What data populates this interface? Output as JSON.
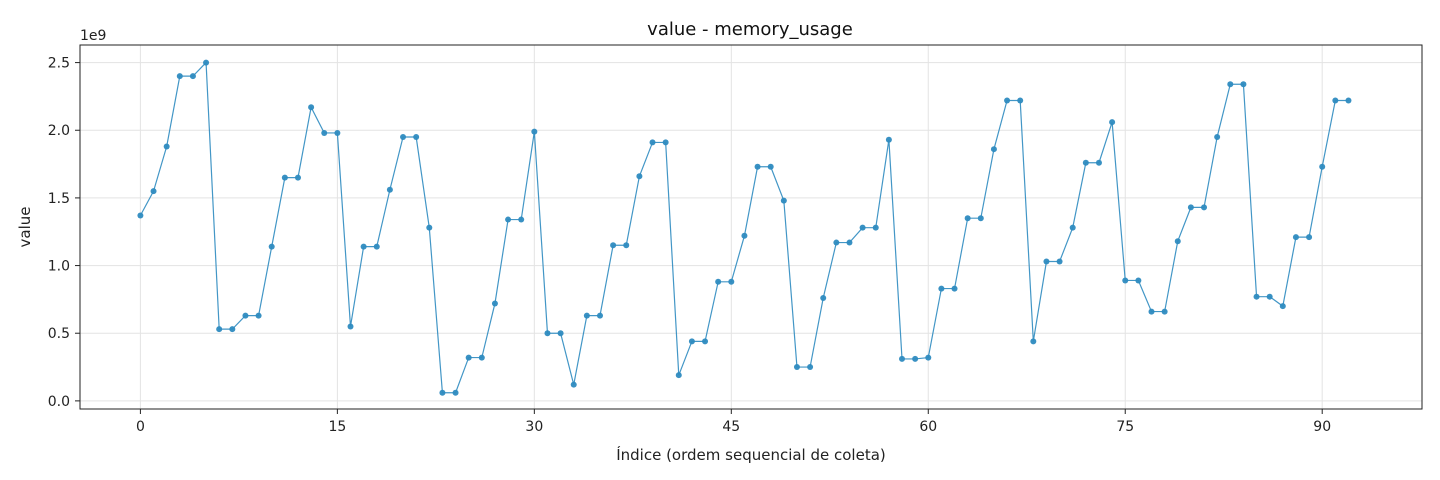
{
  "chart_data": {
    "type": "line",
    "title": "value - memory_usage",
    "xlabel": "Índice (ordem sequencial de coleta)",
    "ylabel": "value",
    "y_multiplier_label": "1e9",
    "y_scale_factor": 1000000000,
    "xlim": [
      -4.6,
      97.6
    ],
    "ylim": [
      -0.06,
      2.63
    ],
    "x_ticks": [
      0,
      15,
      30,
      45,
      60,
      75,
      90
    ],
    "x_tick_labels": [
      "0",
      "15",
      "30",
      "45",
      "60",
      "75",
      "90"
    ],
    "y_ticks": [
      0.0,
      0.5,
      1.0,
      1.5,
      2.0,
      2.5
    ],
    "y_tick_labels": [
      "0.0",
      "0.5",
      "1.0",
      "1.5",
      "2.0",
      "2.5"
    ],
    "grid": true,
    "color": "#2e8bc0",
    "series": [
      {
        "x": [
          0,
          1,
          2,
          3,
          4,
          5,
          6,
          7,
          8,
          9,
          10,
          11,
          12,
          13,
          14,
          15,
          16,
          17,
          18,
          19,
          20,
          21,
          22,
          23,
          24,
          25,
          26,
          27,
          28,
          29,
          30,
          31,
          32,
          33,
          34,
          35,
          36,
          37,
          38,
          39,
          40,
          41,
          42,
          43,
          44,
          45,
          46,
          47,
          48,
          49,
          50,
          51,
          52,
          53,
          54,
          55,
          56,
          57,
          58,
          59,
          60,
          61,
          62,
          63,
          64,
          65,
          66,
          67,
          68,
          69,
          70,
          71,
          72,
          73,
          74,
          75,
          76,
          77,
          78,
          79,
          80,
          81,
          82,
          83,
          84,
          85,
          86,
          87,
          88,
          89,
          90,
          91,
          92
        ],
        "values": [
          1.37,
          1.55,
          1.88,
          2.4,
          2.4,
          2.5,
          0.53,
          0.53,
          0.63,
          0.63,
          1.14,
          1.65,
          1.65,
          2.17,
          1.98,
          1.98,
          0.55,
          1.14,
          1.14,
          1.56,
          1.95,
          1.95,
          1.28,
          0.06,
          0.06,
          0.32,
          0.32,
          0.72,
          1.34,
          1.34,
          1.99,
          0.5,
          0.5,
          0.12,
          0.63,
          0.63,
          1.15,
          1.15,
          1.66,
          1.91,
          1.91,
          0.19,
          0.44,
          0.44,
          0.88,
          0.88,
          1.22,
          1.73,
          1.73,
          1.48,
          0.25,
          0.25,
          0.76,
          1.17,
          1.17,
          1.28,
          1.28,
          1.93,
          0.31,
          0.31,
          0.32,
          0.83,
          0.83,
          1.35,
          1.35,
          1.86,
          2.22,
          2.22,
          0.44,
          1.03,
          1.03,
          1.28,
          1.76,
          1.76,
          2.06,
          0.89,
          0.89,
          0.66,
          0.66,
          1.18,
          1.43,
          1.43,
          1.95,
          2.34,
          2.34,
          0.77,
          0.77,
          0.7,
          1.21,
          1.21,
          1.73,
          2.22,
          2.22
        ]
      }
    ]
  }
}
